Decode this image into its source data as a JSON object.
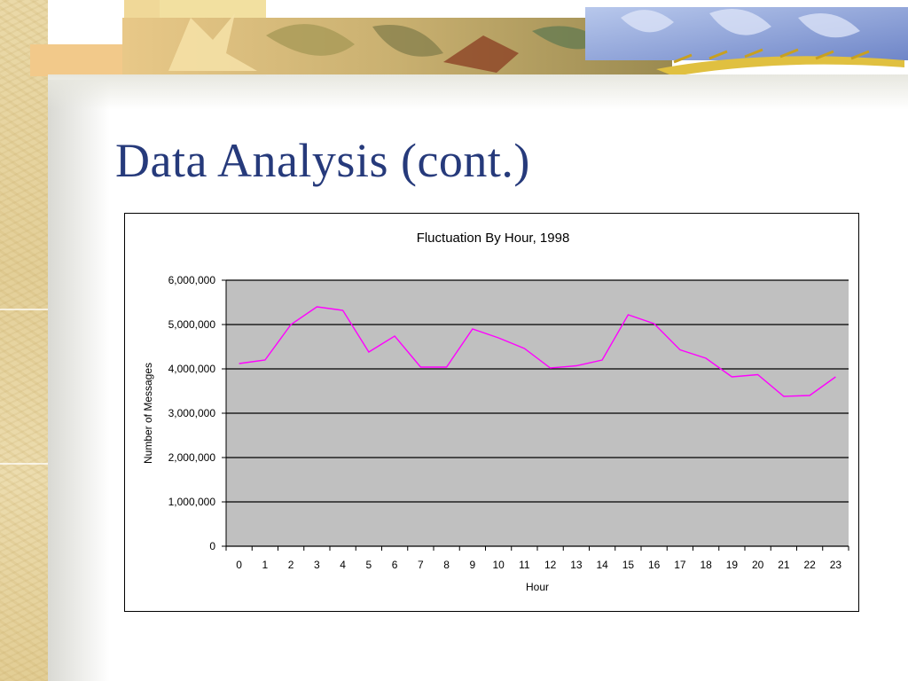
{
  "slide": {
    "title": "Data Analysis (cont.)"
  },
  "theme": {
    "title_color": "#263a7b",
    "plot_background": "#c0c0c0",
    "line_color": "#ff00ff"
  },
  "chart_data": {
    "type": "line",
    "title": "Fluctuation By Hour, 1998",
    "xlabel": "Hour",
    "ylabel": "Number of Messages",
    "ylim": [
      0,
      6000000
    ],
    "yticks": [
      "0",
      "1,000,000",
      "2,000,000",
      "3,000,000",
      "4,000,000",
      "5,000,000",
      "6,000,000"
    ],
    "grid": true,
    "categories": [
      "0",
      "1",
      "2",
      "3",
      "4",
      "5",
      "6",
      "7",
      "8",
      "9",
      "10",
      "11",
      "12",
      "13",
      "14",
      "15",
      "16",
      "17",
      "18",
      "19",
      "20",
      "21",
      "22",
      "23"
    ],
    "series": [
      {
        "values": [
          4120000,
          4200000,
          5000000,
          5400000,
          5320000,
          4380000,
          4740000,
          4040000,
          4040000,
          4900000,
          4700000,
          4460000,
          4020000,
          4070000,
          4200000,
          5220000,
          5020000,
          4430000,
          4240000,
          3820000,
          3870000,
          3380000,
          3400000,
          3820000
        ]
      }
    ]
  }
}
